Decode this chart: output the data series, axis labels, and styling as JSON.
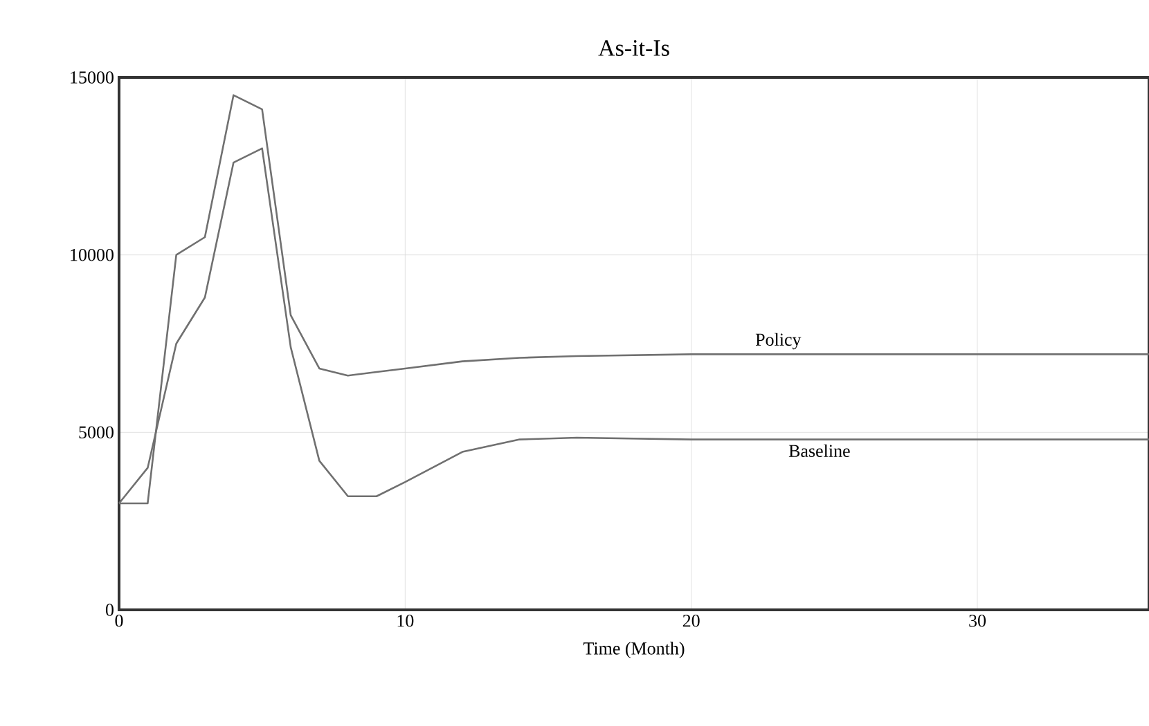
{
  "chart_data": {
    "type": "line",
    "title": "As-it-Is",
    "xlabel": "Time (Month)",
    "xlim": [
      0,
      36
    ],
    "ylim": [
      0,
      15000
    ],
    "xticks": [
      0,
      10,
      20,
      30
    ],
    "yticks": [
      0,
      5000,
      10000,
      15000
    ],
    "grid": true,
    "series": [
      {
        "name": "Policy",
        "color": "#707070",
        "x": [
          0,
          1,
          2,
          3,
          4,
          5,
          6,
          7,
          8,
          9,
          10,
          12,
          14,
          16,
          20,
          25,
          30,
          36
        ],
        "values": [
          3000,
          3000,
          10000,
          10500,
          14500,
          14100,
          8300,
          6800,
          6600,
          6700,
          6800,
          7000,
          7100,
          7150,
          7200,
          7200,
          7200,
          7200
        ]
      },
      {
        "name": "Baseline",
        "color": "#707070",
        "x": [
          0,
          1,
          2,
          3,
          4,
          5,
          6,
          7,
          8,
          9,
          10,
          12,
          14,
          16,
          20,
          25,
          30,
          36
        ],
        "values": [
          3000,
          4000,
          7500,
          8800,
          12600,
          13000,
          7400,
          4200,
          3200,
          3200,
          3600,
          4450,
          4800,
          4850,
          4800,
          4800,
          4800,
          4800
        ]
      }
    ]
  }
}
